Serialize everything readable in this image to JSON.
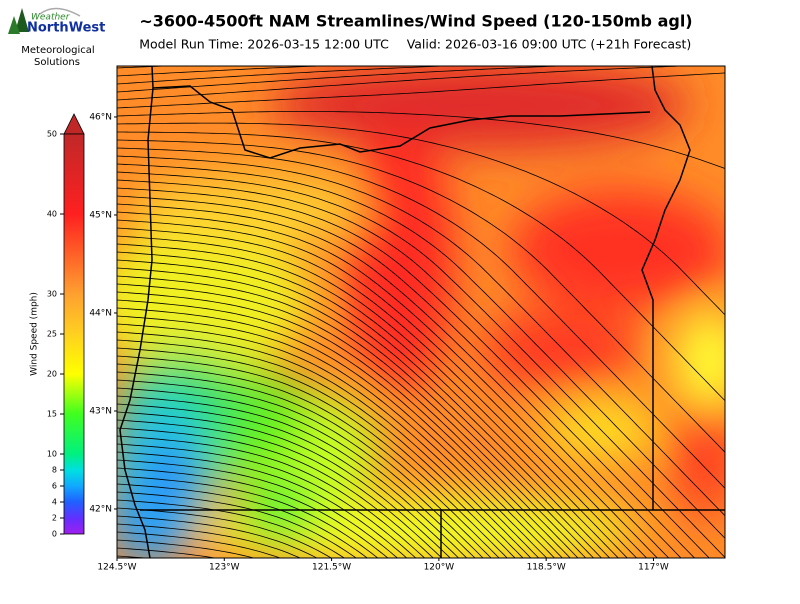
{
  "header": {
    "logo_line1": "Weather",
    "logo_line2": "NorthWest",
    "org_line1": "Meteorological",
    "org_line2": "Solutions",
    "title": "~3600-4500ft NAM Streamlines/Wind Speed (120-150mb agl)",
    "run_time": "Model Run Time: 2026-03-15 12:00 UTC",
    "valid_time": "Valid: 2026-03-16 09:00 UTC  (+21h Forecast)"
  },
  "colorbar": {
    "label": "Wind Speed (mph)",
    "lim": [
      0,
      50
    ],
    "ticks": [
      0,
      2,
      4,
      6,
      8,
      10,
      15,
      20,
      25,
      30,
      40,
      50
    ]
  },
  "map": {
    "xlim": [
      -124.5,
      -116.0
    ],
    "ylim": [
      41.5,
      46.52
    ],
    "lat_ticks": [
      {
        "value": 42,
        "label": "42°N"
      },
      {
        "value": 43,
        "label": "43°N"
      },
      {
        "value": 44,
        "label": "44°N"
      },
      {
        "value": 45,
        "label": "45°N"
      },
      {
        "value": 46,
        "label": "46°N"
      }
    ],
    "lon_ticks": [
      {
        "value": -124.5,
        "label": "124.5°W"
      },
      {
        "value": -123,
        "label": "123°W"
      },
      {
        "value": -121.5,
        "label": "121.5°W"
      },
      {
        "value": -120,
        "label": "120°W"
      },
      {
        "value": -118.5,
        "label": "118.5°W"
      },
      {
        "value": -117,
        "label": "117°W"
      }
    ]
  }
}
